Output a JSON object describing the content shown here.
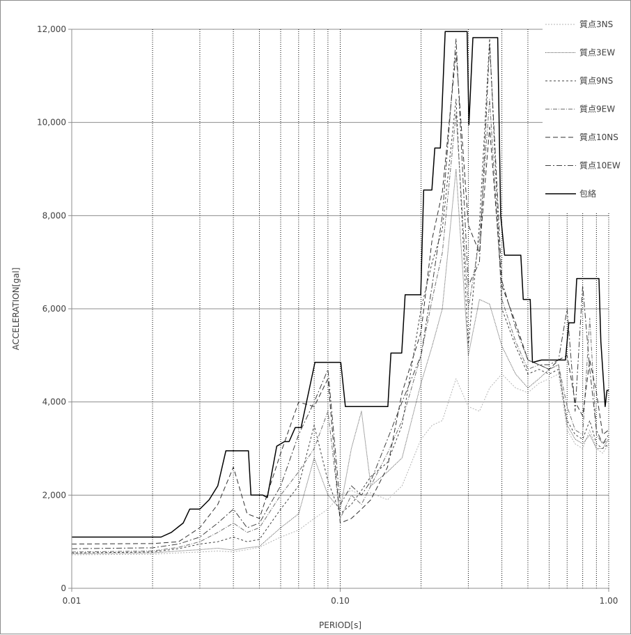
{
  "chart_data": {
    "type": "line",
    "title": "",
    "xlabel": "PERIOD[s]",
    "ylabel": "ACCELERATION[gal]",
    "x_scale": "log",
    "xlim": [
      0.01,
      1.0
    ],
    "ylim": [
      0,
      12000
    ],
    "x_ticks": [
      "0.01",
      "0.10",
      "1.00"
    ],
    "y_ticks": [
      "0",
      "2,000",
      "4,000",
      "6,000",
      "8,000",
      "10,000",
      "12,000"
    ],
    "grid": true,
    "legend_position": "top-right",
    "x_gridlines": [
      0.02,
      0.03,
      0.04,
      0.05,
      0.06,
      0.07,
      0.08,
      0.09,
      0.1,
      0.2,
      0.3,
      0.4,
      0.5,
      0.6,
      0.7,
      0.8,
      0.9,
      1.0
    ],
    "series": [
      {
        "name": "質点3NS",
        "color": "#b4b4b4",
        "dash": "2,2",
        "width": 1,
        "x": [
          0.01,
          0.02,
          0.025,
          0.03,
          0.035,
          0.04,
          0.045,
          0.05,
          0.06,
          0.07,
          0.08,
          0.09,
          0.1,
          0.11,
          0.12,
          0.13,
          0.15,
          0.17,
          0.2,
          0.22,
          0.24,
          0.27,
          0.3,
          0.33,
          0.36,
          0.4,
          0.45,
          0.5,
          0.55,
          0.6,
          0.65,
          0.7,
          0.75,
          0.8,
          0.85,
          0.9,
          0.95,
          1.0
        ],
        "y": [
          720,
          730,
          760,
          780,
          800,
          780,
          830,
          880,
          1100,
          1250,
          1500,
          1700,
          2000,
          2100,
          2000,
          2050,
          1900,
          2200,
          3200,
          3500,
          3600,
          4500,
          3900,
          3800,
          4300,
          4600,
          4300,
          4200,
          4400,
          4500,
          4600,
          3400,
          3100,
          3000,
          3400,
          3000,
          2900,
          3100
        ]
      },
      {
        "name": "質点3EW",
        "color": "#5a5a5a",
        "dash": "1,1",
        "width": 1,
        "x": [
          0.01,
          0.02,
          0.025,
          0.03,
          0.035,
          0.04,
          0.045,
          0.05,
          0.06,
          0.07,
          0.08,
          0.09,
          0.1,
          0.11,
          0.12,
          0.13,
          0.15,
          0.17,
          0.2,
          0.22,
          0.24,
          0.27,
          0.3,
          0.33,
          0.36,
          0.4,
          0.45,
          0.5,
          0.55,
          0.6,
          0.65,
          0.7,
          0.75,
          0.8,
          0.85,
          0.9,
          0.95,
          1.0
        ],
        "y": [
          740,
          760,
          800,
          830,
          860,
          820,
          870,
          900,
          1300,
          1600,
          2800,
          2000,
          1700,
          3000,
          3800,
          2200,
          2500,
          2800,
          4400,
          5200,
          6000,
          9000,
          5000,
          6200,
          6100,
          5200,
          4600,
          4300,
          4500,
          4700,
          4800,
          3500,
          3200,
          3100,
          3300,
          3000,
          3000,
          3200
        ]
      },
      {
        "name": "質点9NS",
        "color": "#404040",
        "dash": "3,3",
        "width": 1,
        "x": [
          0.01,
          0.02,
          0.025,
          0.03,
          0.035,
          0.04,
          0.045,
          0.05,
          0.06,
          0.07,
          0.08,
          0.09,
          0.1,
          0.11,
          0.12,
          0.13,
          0.15,
          0.17,
          0.2,
          0.22,
          0.24,
          0.27,
          0.3,
          0.33,
          0.36,
          0.4,
          0.45,
          0.5,
          0.55,
          0.6,
          0.65,
          0.7,
          0.75,
          0.8,
          0.85,
          0.9,
          0.95,
          1.0
        ],
        "y": [
          760,
          780,
          850,
          950,
          1000,
          1100,
          1000,
          1050,
          1700,
          2200,
          3500,
          2300,
          1600,
          1800,
          2100,
          2400,
          2700,
          3500,
          6000,
          7000,
          7700,
          10500,
          5200,
          7800,
          11800,
          6000,
          5200,
          4600,
          4700,
          4600,
          4700,
          3600,
          3300,
          3200,
          3600,
          3100,
          3000,
          3100
        ]
      },
      {
        "name": "質点9EW",
        "color": "#707070",
        "dash": "6,2,1,2",
        "width": 1,
        "x": [
          0.01,
          0.02,
          0.025,
          0.03,
          0.035,
          0.04,
          0.045,
          0.05,
          0.06,
          0.07,
          0.08,
          0.09,
          0.1,
          0.11,
          0.12,
          0.13,
          0.15,
          0.17,
          0.2,
          0.22,
          0.24,
          0.27,
          0.3,
          0.33,
          0.36,
          0.4,
          0.45,
          0.5,
          0.55,
          0.6,
          0.65,
          0.7,
          0.75,
          0.8,
          0.85,
          0.9,
          0.95,
          1.0
        ],
        "y": [
          780,
          800,
          880,
          1000,
          1200,
          1400,
          1200,
          1300,
          2000,
          2500,
          3000,
          3800,
          1500,
          2000,
          1800,
          2200,
          2900,
          3600,
          5000,
          6200,
          7200,
          10200,
          6000,
          7500,
          10500,
          6200,
          5300,
          4700,
          4800,
          4700,
          4800,
          3900,
          3400,
          3300,
          5800,
          3300,
          3100,
          3200
        ]
      },
      {
        "name": "質点10NS",
        "color": "#303030",
        "dash": "7,4",
        "width": 1,
        "x": [
          0.01,
          0.02,
          0.025,
          0.03,
          0.035,
          0.04,
          0.045,
          0.05,
          0.06,
          0.07,
          0.08,
          0.09,
          0.1,
          0.11,
          0.12,
          0.13,
          0.15,
          0.17,
          0.2,
          0.22,
          0.24,
          0.27,
          0.3,
          0.33,
          0.36,
          0.4,
          0.45,
          0.5,
          0.55,
          0.6,
          0.65,
          0.7,
          0.75,
          0.8,
          0.85,
          0.9,
          0.95,
          1.0
        ],
        "y": [
          950,
          960,
          1000,
          1300,
          1800,
          2600,
          1600,
          1500,
          2900,
          4000,
          3900,
          4500,
          1400,
          1500,
          1700,
          1900,
          2600,
          4200,
          5500,
          7500,
          8500,
          11500,
          7800,
          7200,
          9900,
          6500,
          5700,
          4900,
          4800,
          4700,
          4900,
          5000,
          4000,
          3700,
          4900,
          4200,
          3300,
          3400
        ]
      },
      {
        "name": "質点10EW",
        "color": "#404040",
        "dash": "8,3,2,3",
        "width": 1,
        "x": [
          0.01,
          0.02,
          0.025,
          0.03,
          0.035,
          0.04,
          0.045,
          0.05,
          0.06,
          0.07,
          0.08,
          0.09,
          0.1,
          0.11,
          0.12,
          0.13,
          0.15,
          0.17,
          0.2,
          0.22,
          0.24,
          0.27,
          0.3,
          0.33,
          0.36,
          0.4,
          0.45,
          0.5,
          0.55,
          0.6,
          0.65,
          0.7,
          0.75,
          0.8,
          0.85,
          0.9,
          0.95,
          1.0
        ],
        "y": [
          850,
          870,
          950,
          1100,
          1400,
          1700,
          1300,
          1400,
          2200,
          3300,
          4000,
          4700,
          1800,
          2200,
          2000,
          2300,
          3200,
          4000,
          5000,
          6500,
          8000,
          11800,
          6500,
          7000,
          11700,
          6600,
          5600,
          4900,
          4800,
          4800,
          4900,
          6000,
          3800,
          6500,
          4700,
          3400,
          3100,
          3300
        ]
      },
      {
        "name": "包絡",
        "color": "#000000",
        "dash": "",
        "width": 1.5,
        "x": [
          0.01,
          0.0215,
          0.0235,
          0.026,
          0.0275,
          0.03,
          0.0325,
          0.035,
          0.0375,
          0.0395,
          0.0455,
          0.0465,
          0.0515,
          0.0535,
          0.058,
          0.062,
          0.0645,
          0.068,
          0.0715,
          0.0765,
          0.0805,
          0.0945,
          0.1005,
          0.1045,
          0.1505,
          0.1545,
          0.1695,
          0.1745,
          0.1995,
          0.2045,
          0.2195,
          0.225,
          0.236,
          0.246,
          0.286,
          0.297,
          0.3015,
          0.312,
          0.386,
          0.396,
          0.4095,
          0.4195,
          0.4705,
          0.4805,
          0.51,
          0.52,
          0.562,
          0.572,
          0.69,
          0.71,
          0.745,
          0.76,
          0.92,
          0.935,
          0.97,
          0.985,
          1.0
        ],
        "y": [
          1100,
          1100,
          1200,
          1400,
          1700,
          1700,
          1900,
          2200,
          2950,
          2950,
          2950,
          2000,
          2000,
          1950,
          3050,
          3150,
          3150,
          3450,
          3450,
          4250,
          4850,
          4850,
          4850,
          3900,
          3900,
          5050,
          5050,
          6300,
          6300,
          8550,
          8550,
          9450,
          9450,
          11950,
          11950,
          11950,
          9950,
          11820,
          11820,
          8000,
          7150,
          7150,
          7150,
          6200,
          6200,
          4850,
          4900,
          4900,
          4900,
          5700,
          5700,
          6650,
          6650,
          5300,
          3900,
          4250,
          4250
        ]
      }
    ]
  }
}
